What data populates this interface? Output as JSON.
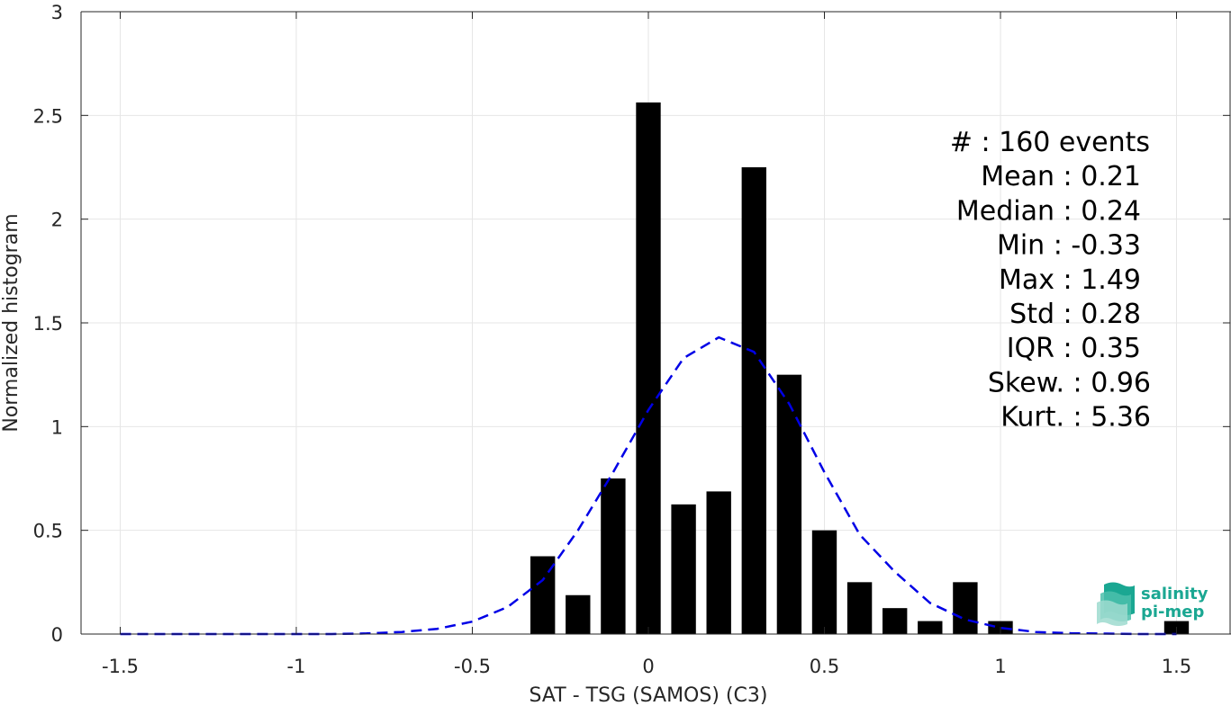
{
  "chart_data": {
    "type": "bar",
    "xlabel": "SAT - TSG (SAMOS) (C3)",
    "ylabel": "Normalized histogram",
    "xlim": [
      -1.6,
      1.6
    ],
    "ylim": [
      0,
      3
    ],
    "xticks": [
      -1.5,
      -1,
      -0.5,
      0,
      0.5,
      1,
      1.5
    ],
    "xtick_labels": [
      "-1.5",
      "-1",
      "-0.5",
      "0",
      "0.5",
      "1",
      "1.5"
    ],
    "yticks": [
      0,
      0.5,
      1,
      1.5,
      2,
      2.5,
      3
    ],
    "ytick_labels": [
      "0",
      "0.5",
      "1",
      "1.5",
      "2",
      "2.5",
      "3"
    ],
    "grid": true,
    "bar_width": 0.07,
    "bars": {
      "color": "#000000",
      "x": [
        -0.3,
        -0.2,
        -0.1,
        0.0,
        0.1,
        0.2,
        0.3,
        0.4,
        0.5,
        0.6,
        0.7,
        0.8,
        0.9,
        1.0,
        1.5
      ],
      "values": [
        0.375,
        0.1875,
        0.75,
        2.5625,
        0.625,
        0.6875,
        2.25,
        1.25,
        0.5,
        0.25,
        0.125,
        0.0625,
        0.25,
        0.0625,
        0.0625
      ]
    },
    "fit_curve": {
      "style": "dashed",
      "color": "#0000e6",
      "x": [
        -1.5,
        -1.4,
        -1.3,
        -1.2,
        -1.1,
        -1.0,
        -0.9,
        -0.8,
        -0.7,
        -0.6,
        -0.5,
        -0.4,
        -0.3,
        -0.2,
        -0.1,
        0.0,
        0.1,
        0.2,
        0.3,
        0.4,
        0.5,
        0.6,
        0.7,
        0.8,
        0.9,
        1.0,
        1.1,
        1.2,
        1.3,
        1.4,
        1.5
      ],
      "y": [
        0.0,
        0.0,
        0.0,
        0.0,
        0.0,
        0.0,
        0.0,
        0.003,
        0.01,
        0.025,
        0.06,
        0.13,
        0.26,
        0.5,
        0.78,
        1.08,
        1.33,
        1.43,
        1.36,
        1.11,
        0.78,
        0.48,
        0.3,
        0.15,
        0.07,
        0.03,
        0.01,
        0.004,
        0.002,
        0.0,
        0.0
      ]
    },
    "annotations": [
      "#  : 160 events",
      "Mean : 0.21",
      "Median : 0.24",
      "Min : -0.33",
      "Max : 1.49",
      "Std : 0.28",
      "IQR : 0.35",
      "Skew. : 0.96",
      "Kurt. : 5.36"
    ]
  },
  "logo": {
    "line1": "salinity",
    "line2": "pi-mep",
    "color": "#1aa792"
  }
}
